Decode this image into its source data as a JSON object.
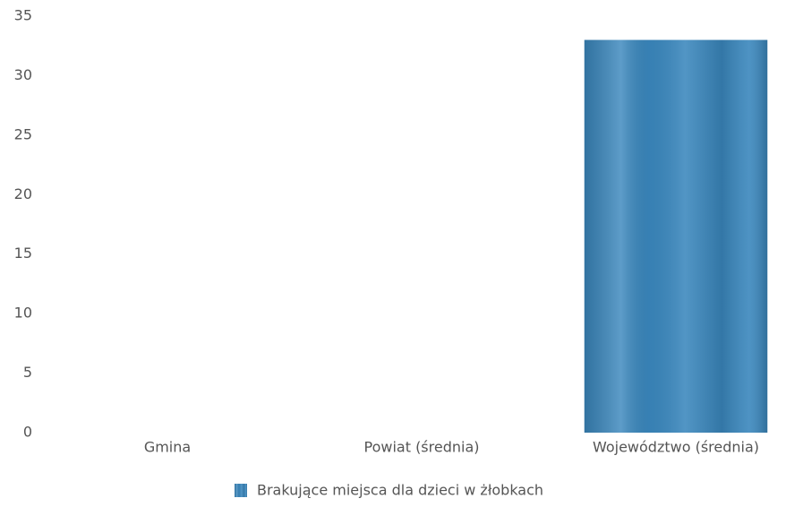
{
  "chart_data": {
    "type": "bar",
    "categories": [
      "Gmina",
      "Powiat (średnia)",
      "Województwo (średnia)"
    ],
    "series": [
      {
        "name": "Brakujące miejsca dla dzieci w żłobkach",
        "color": "#3a87bd",
        "values": [
          0,
          0,
          33
        ]
      }
    ],
    "ylim": [
      0,
      35
    ],
    "yticks": [
      0,
      5,
      10,
      15,
      20,
      25,
      30,
      35
    ],
    "grid": false,
    "legend": "bottom"
  }
}
